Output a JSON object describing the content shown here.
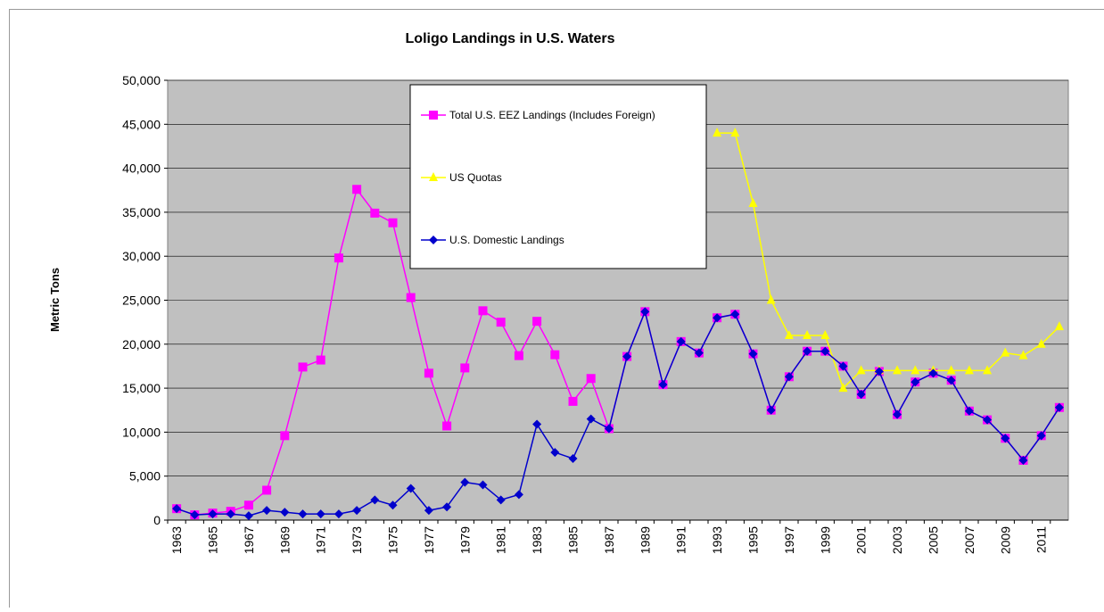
{
  "chart_data": {
    "type": "line",
    "title": "Loligo Landings in U.S. Waters",
    "y_label": "Metric Tons",
    "categories": [
      "1963",
      null,
      "1965",
      null,
      "1967",
      null,
      "1969",
      null,
      "1971",
      null,
      "1973",
      null,
      "1975",
      null,
      "1977",
      null,
      "1979",
      null,
      "1981",
      null,
      "1983",
      null,
      "1985",
      null,
      "1987",
      null,
      "1989",
      null,
      "1991",
      null,
      "1993",
      null,
      "1995",
      null,
      "1997",
      null,
      "1999",
      null,
      "2001",
      null,
      "2003",
      null,
      "2005",
      null,
      "2007",
      null,
      "2009",
      null,
      "2011",
      null
    ],
    "series": [
      {
        "name": "Total U.S. EEZ Landings (Includes Foreign)",
        "color": "#ff00ff",
        "marker": "square",
        "values": [
          1300,
          600,
          800,
          1000,
          1700,
          3400,
          9600,
          17400,
          18200,
          29800,
          37600,
          34900,
          33800,
          25300,
          16700,
          10700,
          17300,
          23800,
          22500,
          18700,
          22600,
          18800,
          13500,
          16100,
          10400,
          18600,
          23700,
          15400,
          20300,
          19000,
          23000,
          23400,
          18900,
          12500,
          16300,
          19200,
          19200,
          17500,
          14300,
          16900,
          12000,
          15700,
          16700,
          15900,
          12400,
          11400,
          9300,
          6800,
          9600,
          12800
        ]
      },
      {
        "name": "US Quotas",
        "color": "#ffff00",
        "marker": "triangle",
        "values": [
          null,
          null,
          null,
          null,
          null,
          null,
          null,
          null,
          null,
          null,
          null,
          null,
          null,
          null,
          null,
          null,
          null,
          null,
          null,
          null,
          null,
          null,
          null,
          null,
          null,
          null,
          null,
          null,
          null,
          null,
          44000,
          44000,
          36000,
          25000,
          21000,
          21000,
          21000,
          15000,
          17000,
          17000,
          17000,
          17000,
          17000,
          17000,
          17000,
          17000,
          19000,
          18700,
          20000,
          22000
        ]
      },
      {
        "name": "U.S. Domestic Landings",
        "color": "#0000cc",
        "marker": "diamond",
        "values": [
          1300,
          600,
          700,
          700,
          500,
          1100,
          900,
          700,
          700,
          700,
          1100,
          2300,
          1700,
          3600,
          1100,
          1500,
          4300,
          4000,
          2300,
          2900,
          10900,
          7700,
          7000,
          11500,
          10400,
          18600,
          23700,
          15400,
          20300,
          19000,
          23000,
          23400,
          18900,
          12500,
          16300,
          19200,
          19200,
          17500,
          14300,
          16900,
          12000,
          15700,
          16700,
          15900,
          12400,
          11400,
          9300,
          6800,
          9600,
          12800
        ]
      }
    ],
    "ylim": [
      0,
      50000
    ],
    "yticks": [
      0,
      {
        "value": 5000,
        "label": "5,000"
      },
      {
        "value": 10000,
        "label": "10,000"
      },
      {
        "value": 15000,
        "label": "15,000"
      },
      {
        "value": 20000,
        "label": "20,000"
      },
      {
        "value": 25000,
        "label": "25,000"
      },
      {
        "value": 30000,
        "label": "30,000"
      },
      {
        "value": 35000,
        "label": "35,000"
      },
      {
        "value": 40000,
        "label": "40,000"
      },
      {
        "value": 45000,
        "label": "45,000"
      },
      {
        "value": 50000,
        "label": "50,000"
      }
    ],
    "grid": true,
    "plot_background": "#c0c0c0",
    "legend_position": "top"
  }
}
